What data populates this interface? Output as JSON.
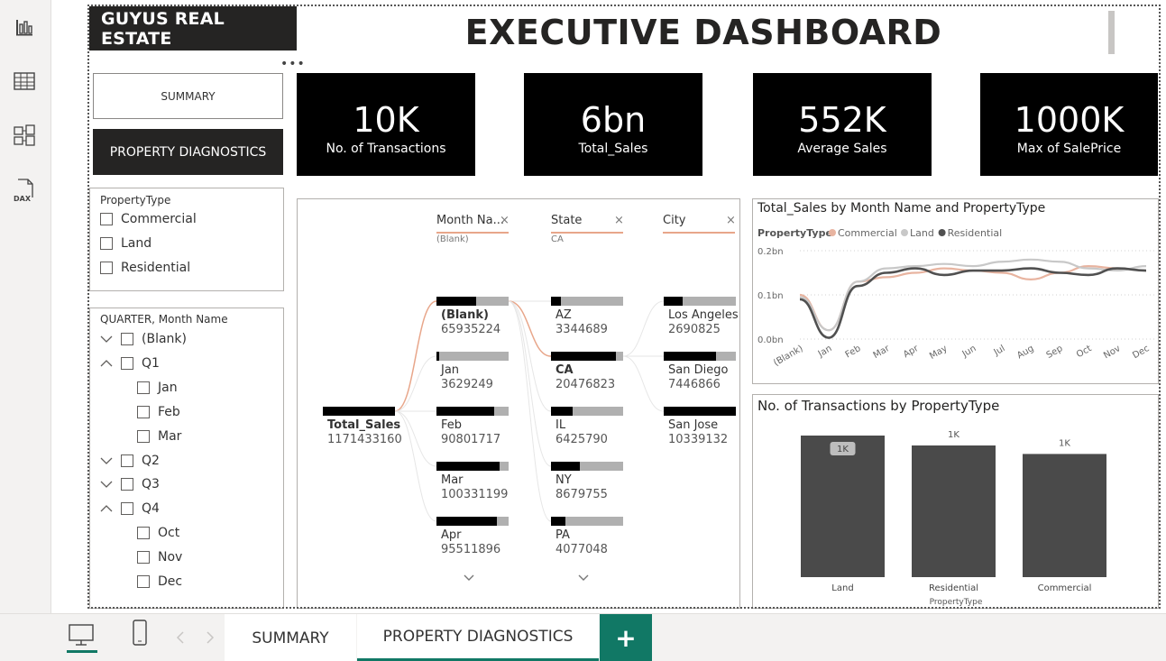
{
  "brand": "GUYUS REAL ESTATE",
  "title": "EXECUTIVE DASHBOARD",
  "more_dots": "•••",
  "nav": {
    "summary": "SUMMARY",
    "property_diagnostics": "PROPERTY DIAGNOSTICS"
  },
  "kpis": [
    {
      "value": "10K",
      "label": "No. of Transactions"
    },
    {
      "value": "6bn",
      "label": "Total_Sales"
    },
    {
      "value": "552K",
      "label": "Average Sales"
    },
    {
      "value": "1000K",
      "label": "Max of SalePrice"
    }
  ],
  "property_slicer": {
    "title": "PropertyType",
    "items": [
      "Commercial",
      "Land",
      "Residential"
    ]
  },
  "quarter_slicer": {
    "title": "QUARTER, Month Name",
    "items": [
      {
        "label": "(Blank)",
        "level": 0,
        "chevron": "down"
      },
      {
        "label": "Q1",
        "level": 0,
        "chevron": "up"
      },
      {
        "label": "Jan",
        "level": 1
      },
      {
        "label": "Feb",
        "level": 1
      },
      {
        "label": "Mar",
        "level": 1
      },
      {
        "label": "Q2",
        "level": 0,
        "chevron": "down"
      },
      {
        "label": "Q3",
        "level": 0,
        "chevron": "down"
      },
      {
        "label": "Q4",
        "level": 0,
        "chevron": "up"
      },
      {
        "label": "Oct",
        "level": 1
      },
      {
        "label": "Nov",
        "level": 1
      },
      {
        "label": "Dec",
        "level": 1
      }
    ]
  },
  "decomp": {
    "headers": [
      {
        "label": "Month Na...",
        "sub": "(Blank)"
      },
      {
        "label": "State",
        "sub": "CA"
      },
      {
        "label": "City",
        "sub": ""
      }
    ],
    "close_glyph": "×",
    "root": {
      "label": "Total_Sales",
      "value": "1171433160"
    },
    "month": [
      {
        "label": "(Blank)",
        "value": "65935224",
        "fill": 0.55,
        "bold": true
      },
      {
        "label": "Jan",
        "value": "3629249",
        "fill": 0.04
      },
      {
        "label": "Feb",
        "value": "90801717",
        "fill": 0.8
      },
      {
        "label": "Mar",
        "value": "100331199",
        "fill": 0.88
      },
      {
        "label": "Apr",
        "value": "95511896",
        "fill": 0.84
      }
    ],
    "state": [
      {
        "label": "AZ",
        "value": "3344689",
        "fill": 0.14
      },
      {
        "label": "CA",
        "value": "20476823",
        "fill": 0.9,
        "bold": true
      },
      {
        "label": "IL",
        "value": "6425790",
        "fill": 0.3
      },
      {
        "label": "NY",
        "value": "8679755",
        "fill": 0.4
      },
      {
        "label": "PA",
        "value": "4077048",
        "fill": 0.2
      }
    ],
    "city": [
      {
        "label": "Los Angeles",
        "value": "2690825",
        "fill": 0.26
      },
      {
        "label": "San Diego",
        "value": "7446866",
        "fill": 0.72
      },
      {
        "label": "San Jose",
        "value": "10339132",
        "fill": 1.0
      }
    ]
  },
  "line_chart": {
    "title": "Total_Sales by Month Name and PropertyType",
    "legend_title": "PropertyType",
    "colors": {
      "Commercial": "#e8b4a0",
      "Land": "#c8c8c8",
      "Residential": "#505050"
    },
    "chart_data": {
      "type": "line",
      "categories": [
        "(Blank)",
        "Jan",
        "Feb",
        "Mar",
        "Apr",
        "May",
        "Jun",
        "Jul",
        "Aug",
        "Sep",
        "Oct",
        "Nov",
        "Dec"
      ],
      "series": [
        {
          "name": "Commercial",
          "values": [
            0.1,
            0.02,
            0.13,
            0.14,
            0.15,
            0.16,
            0.155,
            0.15,
            0.135,
            0.15,
            0.165,
            0.16,
            0.155
          ]
        },
        {
          "name": "Land",
          "values": [
            0.095,
            0.02,
            0.13,
            0.16,
            0.165,
            0.17,
            0.165,
            0.175,
            0.18,
            0.175,
            0.16,
            0.155,
            0.165
          ]
        },
        {
          "name": "Residential",
          "values": [
            0.09,
            0.003,
            0.12,
            0.15,
            0.16,
            0.145,
            0.155,
            0.155,
            0.16,
            0.15,
            0.145,
            0.16,
            0.155
          ]
        }
      ],
      "yticks": [
        "0.0bn",
        "0.1bn",
        "0.2bn"
      ],
      "ylim": [
        0,
        0.2
      ],
      "legend": "top-left",
      "grid": true
    }
  },
  "bar_chart": {
    "title": "No. of Transactions by PropertyType",
    "xlabel": "PropertyType",
    "chart_data": {
      "type": "bar",
      "categories": [
        "Land",
        "Residential",
        "Commercial"
      ],
      "values": [
        1.0,
        0.93,
        0.87
      ],
      "data_labels": [
        "1K",
        "1K",
        "1K"
      ],
      "xlabel": "PropertyType"
    }
  },
  "bottom": {
    "tabs": [
      "SUMMARY",
      "PROPERTY DIAGNOSTICS"
    ],
    "add": "+"
  }
}
